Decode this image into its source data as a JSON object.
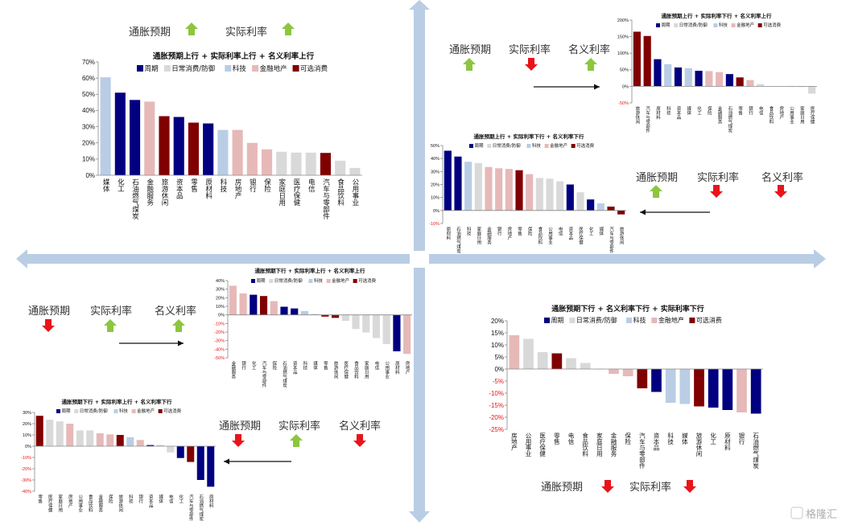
{
  "groups": [
    {
      "name": "周期",
      "color": "#000080"
    },
    {
      "name": "日常消费/防御",
      "color": "#d9d9d9"
    },
    {
      "name": "科技",
      "color": "#b9cde5"
    },
    {
      "name": "金融地产",
      "color": "#e6b9b8"
    },
    {
      "name": "可选消费",
      "color": "#800000"
    }
  ],
  "industry_group": {
    "媒体": "科技",
    "科技": "科技",
    "化工": "周期",
    "石油燃气煤炭": "周期",
    "资本品": "周期",
    "原材料": "周期",
    "金融服务": "金融地产",
    "房地产": "金融地产",
    "银行": "金融地产",
    "保险": "金融地产",
    "旅游休闲": "可选消费",
    "零售": "可选消费",
    "汽车与零部件": "可选消费",
    "家庭日用": "日常消费/防御",
    "医疗保健": "日常消费/防御",
    "电信": "日常消费/防御",
    "食品饮料": "日常消费/防御",
    "公用事业": "日常消费/防御"
  },
  "colors": {
    "up_arrow": "#8cc63f",
    "down_arrow": "#e8141b",
    "axis_band": "#b9cde5",
    "negative_tick": "#e8141b"
  },
  "annotations": [
    {
      "items": [
        {
          "label": "通胀预期",
          "dir": "up"
        },
        {
          "label": "实际利率",
          "dir": "up"
        }
      ]
    },
    {
      "items": [
        {
          "label": "通胀预期",
          "dir": "up"
        },
        {
          "label": "实际利率",
          "dir": "down"
        },
        {
          "label": "名义利率",
          "dir": "up"
        }
      ]
    },
    {
      "items": [
        {
          "label": "通胀预期",
          "dir": "up"
        },
        {
          "label": "实际利率",
          "dir": "down"
        },
        {
          "label": "名义利率",
          "dir": "down"
        }
      ]
    },
    {
      "items": [
        {
          "label": "通胀预期",
          "dir": "down"
        },
        {
          "label": "实际利率",
          "dir": "up"
        },
        {
          "label": "名义利率",
          "dir": "up"
        }
      ]
    },
    {
      "items": [
        {
          "label": "通胀预期",
          "dir": "down"
        },
        {
          "label": "实际利率",
          "dir": "up"
        },
        {
          "label": "名义利率",
          "dir": "down"
        }
      ]
    },
    {
      "items": [
        {
          "label": "通胀预期",
          "dir": "down"
        },
        {
          "label": "实际利率",
          "dir": "down"
        }
      ]
    }
  ],
  "watermark": "格隆汇",
  "chart_data": [
    {
      "type": "bar",
      "title": "通胀预期上行 + 实际利率上行 + 名义利率上行",
      "categories": [
        "媒体",
        "化工",
        "石油燃气煤炭",
        "金融服务",
        "旅游休闲",
        "资本品",
        "零售",
        "原材料",
        "科技",
        "房地产",
        "银行",
        "保险",
        "家庭日用",
        "医疗保健",
        "电信",
        "汽车与零部件",
        "食品饮料",
        "公用事业"
      ],
      "values": [
        60.5,
        51,
        46.5,
        45.5,
        36.5,
        36,
        32.5,
        32,
        28,
        28,
        20,
        16,
        14.5,
        14,
        14,
        13.8,
        9,
        4.5
      ],
      "unit": "%",
      "ylim": [
        0,
        70
      ],
      "ystep": 10,
      "legend": "top",
      "grid": false
    },
    {
      "type": "bar",
      "title": "通胀预期上行 + 实际利率下行 + 名义利率上行",
      "categories": [
        "旅游休闲",
        "汽车与零部件",
        "原材料",
        "科技",
        "资本品",
        "媒体",
        "化工",
        "保险",
        "金融服务",
        "石油燃气煤炭",
        "零售",
        "银行",
        "电信",
        "食品饮料",
        "房地产",
        "公用事业",
        "家庭日用",
        "医疗保健"
      ],
      "values": [
        165,
        152,
        82,
        67,
        57,
        55,
        47,
        46,
        43,
        37,
        27,
        19,
        7,
        1,
        1,
        0,
        -2,
        -22
      ],
      "unit": "%",
      "ylim": [
        -50,
        200
      ],
      "ystep": 50,
      "legend": "top",
      "grid": false
    },
    {
      "type": "bar",
      "title": "通胀预期上行 + 实际利率下行 + 名义利率下行",
      "categories": [
        "原材料",
        "石油燃气煤炭",
        "科技",
        "家庭日用",
        "金融服务",
        "银行",
        "房地产",
        "零售",
        "保险",
        "食品饮料",
        "公用事业",
        "电信",
        "资本品",
        "医疗保健",
        "化工",
        "媒体",
        "汽车与零部件",
        "旅游休闲"
      ],
      "values": [
        46,
        41.5,
        37.5,
        36.5,
        33.5,
        32.5,
        32,
        31,
        28,
        25,
        24.5,
        22.5,
        20,
        14,
        8.5,
        5.5,
        3,
        -3
      ],
      "unit": "%",
      "ylim": [
        -10,
        50
      ],
      "ystep": 10,
      "legend": "top",
      "grid": false
    },
    {
      "type": "bar",
      "title": "通胀预期下行 + 实际利率上行 + 名义利率上行",
      "categories": [
        "金融服务",
        "银行",
        "化工",
        "汽车与零部件",
        "保险",
        "石油燃气煤炭",
        "资本品",
        "科技",
        "媒体",
        "零售",
        "旅游休闲",
        "医疗保健",
        "食品饮料",
        "家庭日用",
        "电信",
        "公用事业",
        "原材料",
        "房地产"
      ],
      "values": [
        34,
        25,
        23.5,
        22,
        16,
        9.5,
        7.5,
        4.5,
        1,
        -2,
        -3.5,
        -7,
        -16.5,
        -20.5,
        -27,
        -34,
        -42.5,
        -45.5
      ],
      "unit": "%",
      "ylim": [
        -50,
        40
      ],
      "ystep": 10,
      "legend": "top",
      "grid": false
    },
    {
      "type": "bar",
      "title": "通胀预期下行 + 实际利率上行 + 名义利率下行",
      "categories": [
        "零售",
        "医疗保健",
        "家庭日用",
        "房地产",
        "公用事业",
        "食品饮料",
        "金融服务",
        "保险",
        "旅游休闲",
        "科技",
        "银行",
        "资本品",
        "媒体",
        "电信",
        "化工",
        "汽车与零部件",
        "石油燃气煤炭",
        "原材料"
      ],
      "values": [
        27,
        23.5,
        22,
        20,
        14,
        14,
        11.5,
        10.5,
        10,
        8,
        5.5,
        1,
        1,
        -5.5,
        -10.5,
        -14,
        -30,
        -36
      ],
      "unit": "%",
      "ylim": [
        -40,
        30
      ],
      "ystep": 10,
      "legend": "top",
      "grid": false
    },
    {
      "type": "bar",
      "title": "通胀预期下行 + 名义利率下行 + 实际利率下行",
      "categories": [
        "房地产",
        "公用事业",
        "医疗保健",
        "零售",
        "电信",
        "食品饮料",
        "家庭日用",
        "金融服务",
        "保险",
        "汽车与零部件",
        "资本品",
        "科技",
        "媒体",
        "旅游休闲",
        "化工",
        "原材料",
        "银行",
        "石油燃气煤炭"
      ],
      "values": [
        14,
        12.5,
        7,
        6.5,
        4.5,
        2.5,
        0,
        -2,
        -3,
        -8,
        -9.5,
        -14,
        -14.5,
        -15.5,
        -16,
        -17,
        -18,
        -18.5
      ],
      "unit": "%",
      "ylim": [
        -25,
        20
      ],
      "ystep": 5,
      "legend": "top",
      "grid": false
    }
  ]
}
